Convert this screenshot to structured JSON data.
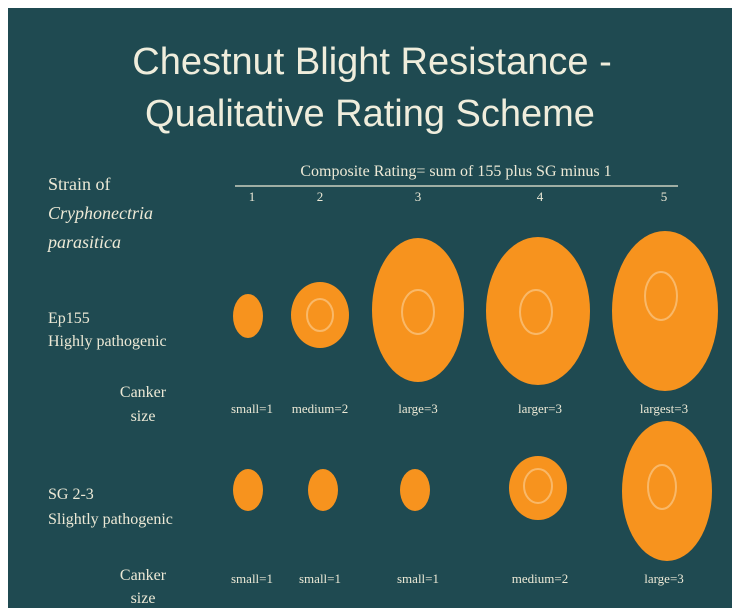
{
  "title": [
    "Chestnut Blight Resistance -",
    "Qualitative Rating Scheme"
  ],
  "header": {
    "text": "Composite Rating= sum of 155 plus SG minus 1",
    "ratings": [
      "1",
      "2",
      "3",
      "4",
      "5"
    ]
  },
  "strain_label": [
    "Strain of",
    "Cryphonectria",
    "parasitica"
  ],
  "rows": [
    {
      "name": "Ep155",
      "description": "Highly pathogenic",
      "canker_label": [
        "Canker",
        "size"
      ],
      "sizes": [
        "small=1",
        "medium=2",
        "large=3",
        "larger=3",
        "largest=3"
      ]
    },
    {
      "name": "SG 2-3",
      "description": "Slightly pathogenic",
      "canker_label": [
        "Canker",
        "size"
      ],
      "sizes": [
        "small=1",
        "small=1",
        "small=1",
        "medium=2",
        "large=3"
      ]
    }
  ]
}
